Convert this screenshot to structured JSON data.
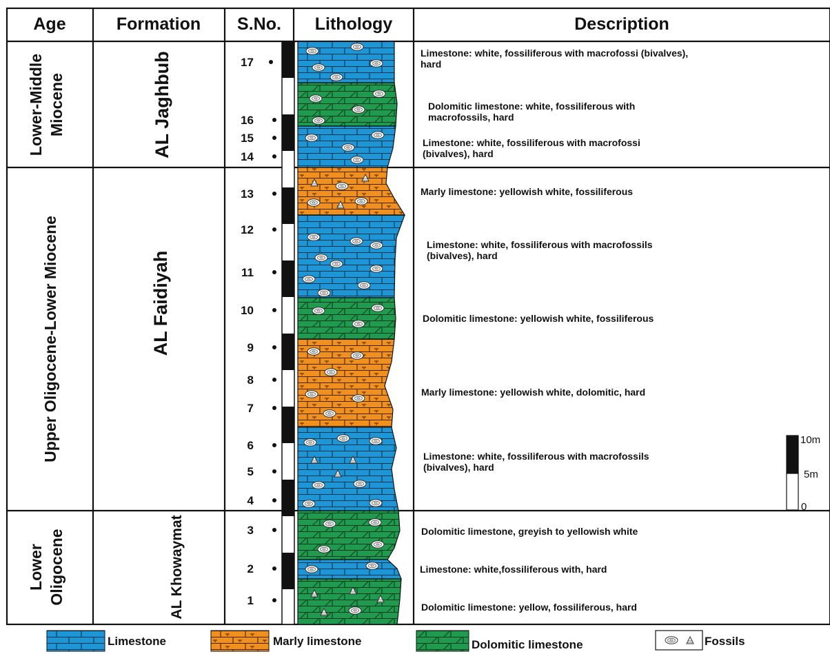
{
  "headers": {
    "age": "Age",
    "formation": "Formation",
    "sno": "S.No.",
    "lithology": "Lithology",
    "description": "Description"
  },
  "ages": [
    {
      "lines": [
        "Lower-Middle",
        "Miocene"
      ]
    },
    {
      "lines": [
        "Upper Oligocene-Lower Miocene"
      ]
    },
    {
      "lines": [
        "Lower",
        "Oligocene"
      ]
    }
  ],
  "formations": [
    "AL Jaghbub",
    "AL Faidiyah",
    "AL Khowaymat"
  ],
  "samples": [
    "17",
    "16",
    "15",
    "14",
    "13",
    "12",
    "11",
    "10",
    "9",
    "8",
    "7",
    "6",
    "5",
    "4",
    "3",
    "2",
    "1"
  ],
  "descriptions": [
    {
      "lines": [
        "Limestone: white, fossiliferous with macrofossi (bivalves),",
        "hard"
      ]
    },
    {
      "lines": [
        "Dolomitic limestone: white, fossiliferous with",
        "macrofossils, hard"
      ]
    },
    {
      "lines": [
        "Limestone: white, fossiliferous with macrofossi",
        "(bivalves), hard"
      ]
    },
    {
      "lines": [
        "Marly limestone: yellowish white, fossiliferous"
      ]
    },
    {
      "lines": [
        "Limestone: white, fossiliferous with macrofossils",
        "(bivalves), hard"
      ]
    },
    {
      "lines": [
        "Dolomitic limestone: yellowish white, fossiliferous"
      ]
    },
    {
      "lines": [
        "Marly limestone: yellowish white, dolomitic,  hard"
      ]
    },
    {
      "lines": [
        "Limestone: white, fossiliferous with macrofossils",
        "(bivalves), hard"
      ]
    },
    {
      "lines": [
        "Dolomitic limestone, greyish to yellowish white"
      ]
    },
    {
      "lines": [
        "Limestone: white,fossiliferous with, hard"
      ]
    },
    {
      "lines": [
        "Dolomitic limestone: yellow, fossiliferous, hard"
      ]
    }
  ],
  "beds": [
    {
      "lithology": "limestone"
    },
    {
      "lithology": "dolomitic-limestone"
    },
    {
      "lithology": "limestone"
    },
    {
      "lithology": "marly-limestone"
    },
    {
      "lithology": "limestone"
    },
    {
      "lithology": "dolomitic-limestone"
    },
    {
      "lithology": "marly-limestone"
    },
    {
      "lithology": "limestone"
    },
    {
      "lithology": "dolomitic-limestone"
    },
    {
      "lithology": "limestone"
    },
    {
      "lithology": "dolomitic-limestone"
    }
  ],
  "scale": {
    "top": "10m",
    "mid": "5m",
    "bottom": "0"
  },
  "legend": {
    "limestone": "Limestone",
    "marly": "Marly limestone",
    "dolomitic": "Dolomitic limestone",
    "fossils": "Fossils"
  },
  "colors": {
    "limestone": "#1e96d6",
    "marly_limestone": "#f0901e",
    "dolomitic_limestone": "#1f9a4e"
  }
}
